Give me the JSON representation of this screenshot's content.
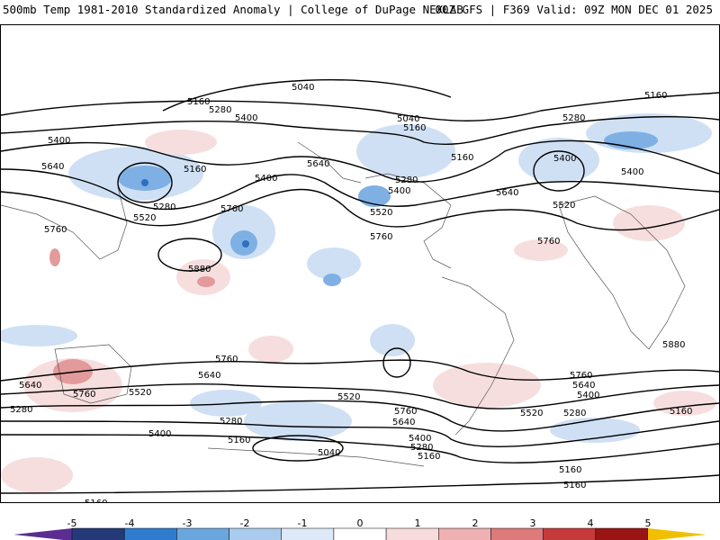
{
  "header": {
    "left_title": "500mb Temp 1981-2010 Standardized Anomaly | College of DuPage NEXLAB",
    "right_title": "00Z GFS | F369 Valid: 09Z MON DEC 01 2025"
  },
  "contour_labels": [
    "5040",
    "5160",
    "5280",
    "5400",
    "5520",
    "5640",
    "5760",
    "5880"
  ],
  "colorbar": {
    "ticks": [
      "-5",
      "-4",
      "-3",
      "-2",
      "-1",
      "0",
      "1",
      "2",
      "3",
      "4",
      "5"
    ],
    "colors": [
      "#5a2d91",
      "#243a78",
      "#2f7ccf",
      "#6aa6de",
      "#a9cbed",
      "#dde9f7",
      "#ffffff",
      "#f6dcdc",
      "#eeb0b0",
      "#dd7a7a",
      "#c73a3a",
      "#9b1414",
      "#f0c000"
    ]
  },
  "colors": {
    "cold_light": "#cfe0f4",
    "cold_mid": "#9dc3ea",
    "cold_strong": "#4d8fd6",
    "warm_light": "#f7dede",
    "warm_mid": "#eeb5b5",
    "warm_strong": "#d85a5a",
    "contour": "#000000"
  }
}
